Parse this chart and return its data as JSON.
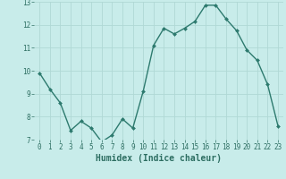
{
  "x": [
    0,
    1,
    2,
    3,
    4,
    5,
    6,
    7,
    8,
    9,
    10,
    11,
    12,
    13,
    14,
    15,
    16,
    17,
    18,
    19,
    20,
    21,
    22,
    23
  ],
  "y": [
    9.9,
    9.2,
    8.6,
    7.4,
    7.8,
    7.5,
    6.9,
    7.2,
    7.9,
    7.5,
    9.1,
    11.1,
    11.85,
    11.6,
    11.85,
    12.15,
    12.85,
    12.85,
    12.25,
    11.75,
    10.9,
    10.45,
    9.4,
    7.6
  ],
  "xlabel": "Humidex (Indice chaleur)",
  "ylim": [
    7,
    13
  ],
  "xlim_left": -0.5,
  "xlim_right": 23.5,
  "yticks": [
    7,
    8,
    9,
    10,
    11,
    12,
    13
  ],
  "xticks": [
    0,
    1,
    2,
    3,
    4,
    5,
    6,
    7,
    8,
    9,
    10,
    11,
    12,
    13,
    14,
    15,
    16,
    17,
    18,
    19,
    20,
    21,
    22,
    23
  ],
  "line_color": "#2d7a6e",
  "marker_color": "#2d7a6e",
  "bg_color": "#c8ecea",
  "grid_color": "#b0d8d5",
  "tick_label_color": "#2d6e62",
  "xlabel_color": "#2d6e62",
  "marker": "D",
  "markersize": 2.0,
  "linewidth": 1.0,
  "xlabel_fontsize": 7,
  "tick_fontsize": 5.5
}
